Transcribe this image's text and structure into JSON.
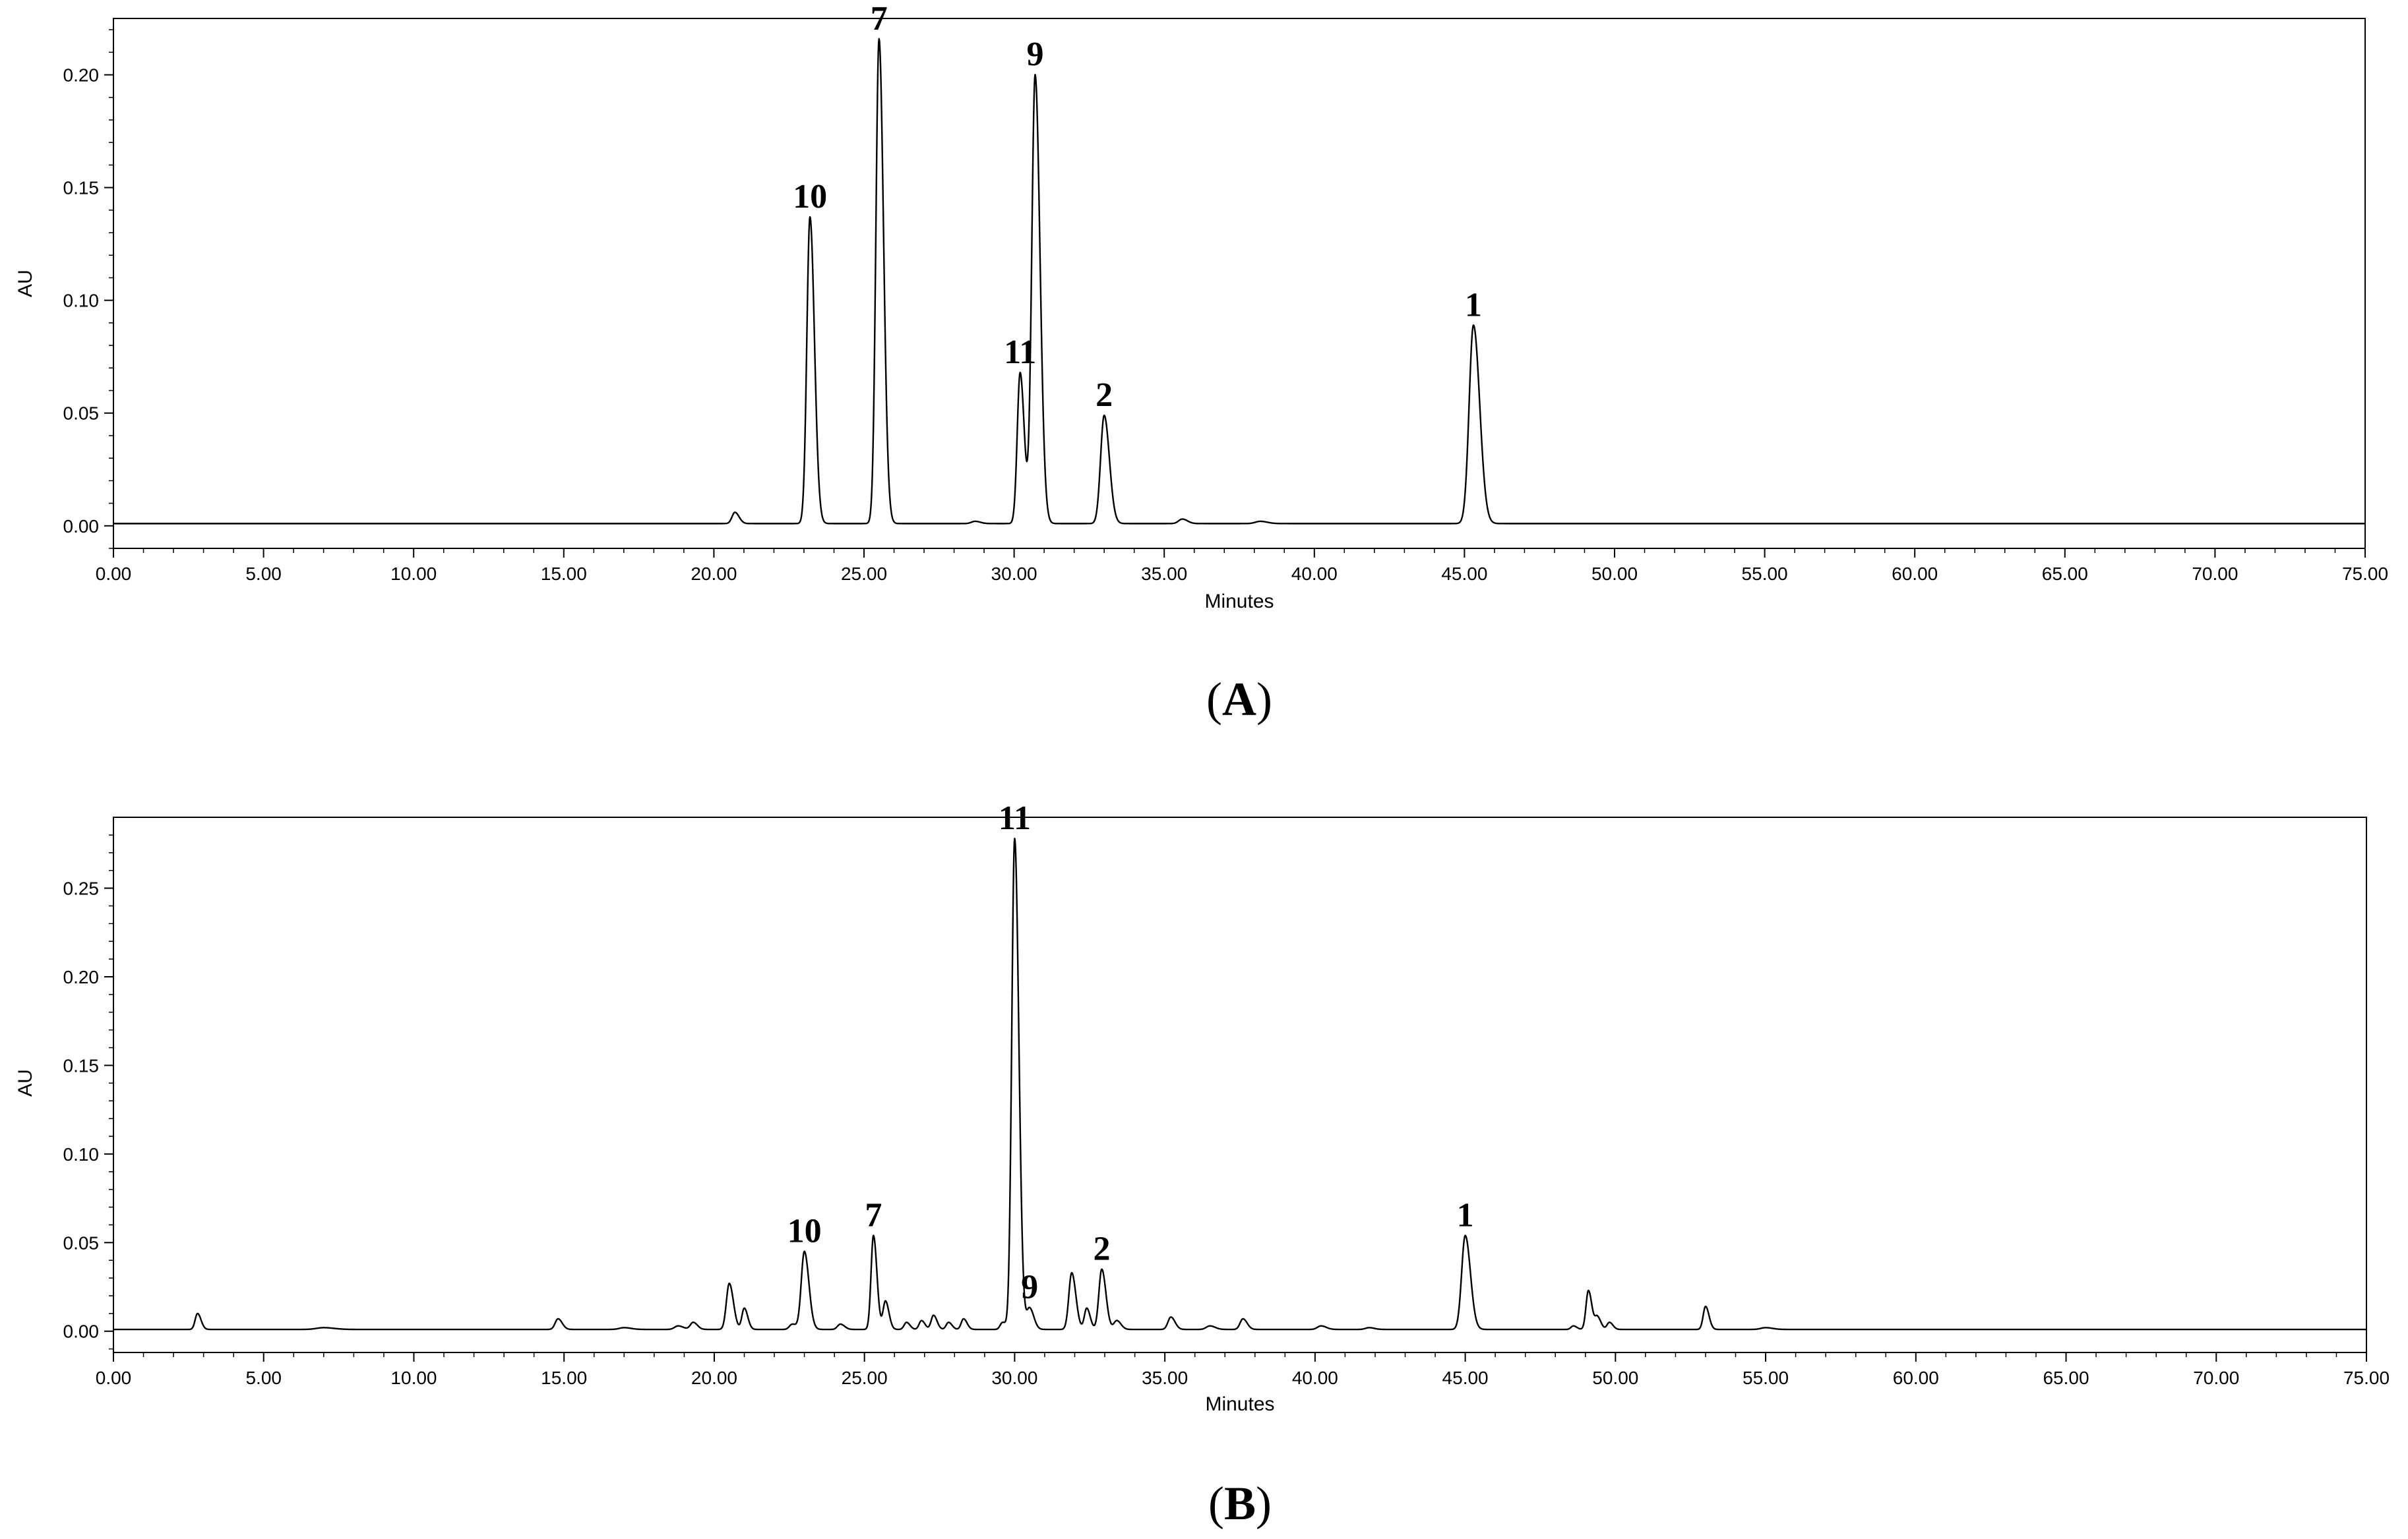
{
  "chart_data": [
    {
      "type": "line",
      "panel_label": "A",
      "xlabel": "Minutes",
      "ylabel": "AU",
      "xlim": [
        0,
        75
      ],
      "ylim": [
        -0.01,
        0.225
      ],
      "x_ticks": [
        "0.00",
        "5.00",
        "10.00",
        "15.00",
        "20.00",
        "25.00",
        "30.00",
        "35.00",
        "40.00",
        "45.00",
        "50.00",
        "55.00",
        "60.00",
        "65.00",
        "70.00",
        "75.00"
      ],
      "y_ticks": [
        "0.00",
        "0.05",
        "0.10",
        "0.15",
        "0.20"
      ],
      "baseline": 0.001,
      "peaks": [
        {
          "x": 20.7,
          "y": 0.006,
          "w": 0.12,
          "label": ""
        },
        {
          "x": 23.2,
          "y": 0.137,
          "w": 0.13,
          "label": "10"
        },
        {
          "x": 25.5,
          "y": 0.216,
          "w": 0.13,
          "label": "7"
        },
        {
          "x": 28.7,
          "y": 0.002,
          "w": 0.15,
          "label": ""
        },
        {
          "x": 30.2,
          "y": 0.068,
          "w": 0.12,
          "label": "11"
        },
        {
          "x": 30.7,
          "y": 0.2,
          "w": 0.14,
          "label": "9"
        },
        {
          "x": 33.0,
          "y": 0.049,
          "w": 0.15,
          "label": "2"
        },
        {
          "x": 35.6,
          "y": 0.003,
          "w": 0.15,
          "label": ""
        },
        {
          "x": 38.2,
          "y": 0.002,
          "w": 0.2,
          "label": ""
        },
        {
          "x": 45.3,
          "y": 0.089,
          "w": 0.18,
          "label": "1"
        }
      ]
    },
    {
      "type": "line",
      "panel_label": "B",
      "xlabel": "Minutes",
      "ylabel": "AU",
      "xlim": [
        0,
        75
      ],
      "ylim": [
        -0.012,
        0.29
      ],
      "x_ticks": [
        "0.00",
        "5.00",
        "10.00",
        "15.00",
        "20.00",
        "25.00",
        "30.00",
        "35.00",
        "40.00",
        "45.00",
        "50.00",
        "55.00",
        "60.00",
        "65.00",
        "70.00",
        "75.00"
      ],
      "y_ticks": [
        "0.00",
        "0.05",
        "0.10",
        "0.15",
        "0.20",
        "0.25"
      ],
      "baseline": 0.001,
      "peaks": [
        {
          "x": 2.8,
          "y": 0.01,
          "w": 0.1,
          "label": ""
        },
        {
          "x": 7.0,
          "y": 0.002,
          "w": 0.3,
          "label": ""
        },
        {
          "x": 14.8,
          "y": 0.007,
          "w": 0.12,
          "label": ""
        },
        {
          "x": 17.0,
          "y": 0.002,
          "w": 0.2,
          "label": ""
        },
        {
          "x": 18.8,
          "y": 0.003,
          "w": 0.15,
          "label": ""
        },
        {
          "x": 19.3,
          "y": 0.005,
          "w": 0.12,
          "label": ""
        },
        {
          "x": 20.5,
          "y": 0.027,
          "w": 0.12,
          "label": ""
        },
        {
          "x": 21.0,
          "y": 0.013,
          "w": 0.1,
          "label": ""
        },
        {
          "x": 22.6,
          "y": 0.004,
          "w": 0.12,
          "label": ""
        },
        {
          "x": 23.0,
          "y": 0.045,
          "w": 0.13,
          "label": "10"
        },
        {
          "x": 24.2,
          "y": 0.004,
          "w": 0.12,
          "label": ""
        },
        {
          "x": 25.3,
          "y": 0.054,
          "w": 0.1,
          "label": "7"
        },
        {
          "x": 25.7,
          "y": 0.017,
          "w": 0.1,
          "label": ""
        },
        {
          "x": 26.4,
          "y": 0.005,
          "w": 0.1,
          "label": ""
        },
        {
          "x": 26.9,
          "y": 0.006,
          "w": 0.1,
          "label": ""
        },
        {
          "x": 27.3,
          "y": 0.009,
          "w": 0.1,
          "label": ""
        },
        {
          "x": 27.8,
          "y": 0.005,
          "w": 0.1,
          "label": ""
        },
        {
          "x": 28.3,
          "y": 0.007,
          "w": 0.1,
          "label": ""
        },
        {
          "x": 29.6,
          "y": 0.005,
          "w": 0.1,
          "label": ""
        },
        {
          "x": 30.0,
          "y": 0.278,
          "w": 0.12,
          "label": "11"
        },
        {
          "x": 30.5,
          "y": 0.013,
          "w": 0.12,
          "label": "9"
        },
        {
          "x": 31.9,
          "y": 0.033,
          "w": 0.12,
          "label": ""
        },
        {
          "x": 32.4,
          "y": 0.013,
          "w": 0.1,
          "label": ""
        },
        {
          "x": 32.9,
          "y": 0.035,
          "w": 0.12,
          "label": "2"
        },
        {
          "x": 33.4,
          "y": 0.006,
          "w": 0.12,
          "label": ""
        },
        {
          "x": 35.2,
          "y": 0.008,
          "w": 0.12,
          "label": ""
        },
        {
          "x": 36.5,
          "y": 0.003,
          "w": 0.15,
          "label": ""
        },
        {
          "x": 37.6,
          "y": 0.007,
          "w": 0.12,
          "label": ""
        },
        {
          "x": 40.2,
          "y": 0.003,
          "w": 0.15,
          "label": ""
        },
        {
          "x": 41.8,
          "y": 0.002,
          "w": 0.15,
          "label": ""
        },
        {
          "x": 45.0,
          "y": 0.054,
          "w": 0.15,
          "label": "1"
        },
        {
          "x": 48.6,
          "y": 0.003,
          "w": 0.1,
          "label": ""
        },
        {
          "x": 49.1,
          "y": 0.023,
          "w": 0.1,
          "label": ""
        },
        {
          "x": 49.4,
          "y": 0.008,
          "w": 0.1,
          "label": ""
        },
        {
          "x": 49.8,
          "y": 0.005,
          "w": 0.1,
          "label": ""
        },
        {
          "x": 53.0,
          "y": 0.014,
          "w": 0.1,
          "label": ""
        },
        {
          "x": 55.0,
          "y": 0.002,
          "w": 0.2,
          "label": ""
        }
      ]
    }
  ]
}
